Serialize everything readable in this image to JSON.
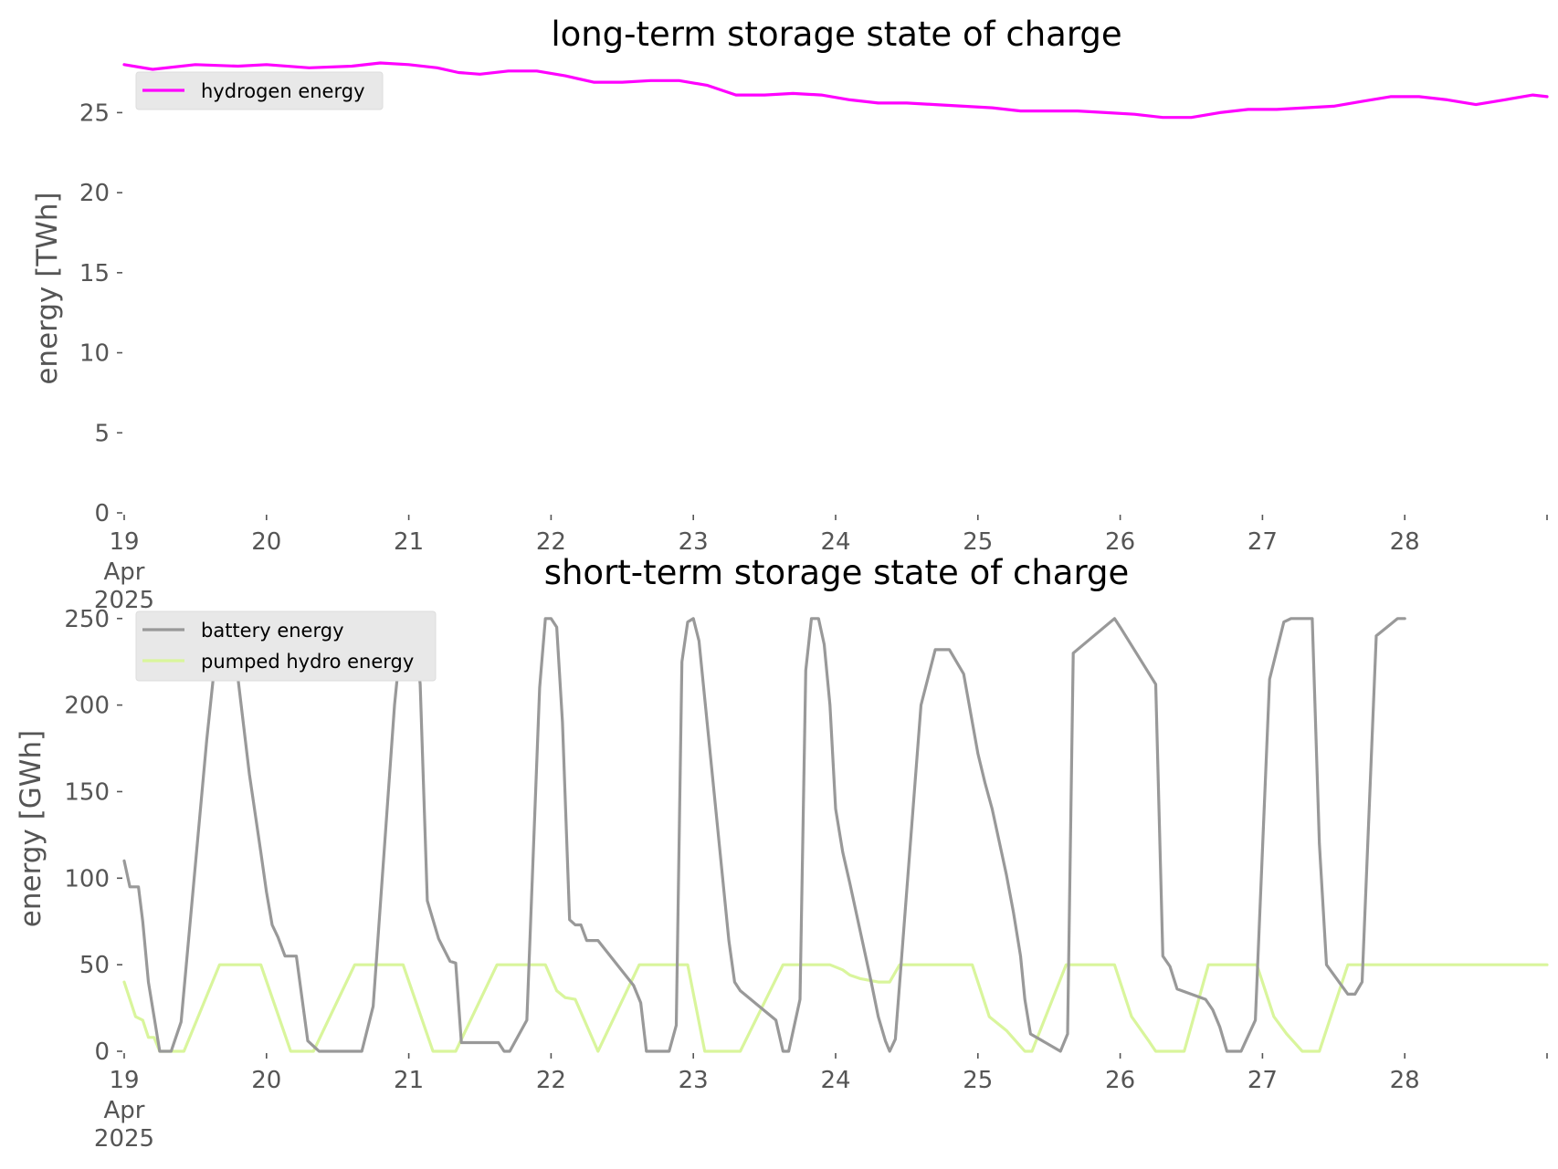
{
  "chart_data": [
    {
      "type": "line",
      "title": "long-term storage state of charge",
      "ylabel": "energy [TWh]",
      "xlabel": "",
      "ylim": [
        0,
        28.5
      ],
      "yticks": [
        0,
        5,
        10,
        15,
        20,
        25
      ],
      "xlim": [
        0,
        10
      ],
      "xticks": [
        0,
        1,
        2,
        3,
        4,
        5,
        6,
        7,
        8,
        9,
        10
      ],
      "xtick_labels": [
        "19",
        "20",
        "21",
        "22",
        "23",
        "24",
        "25",
        "26",
        "27",
        "28",
        ""
      ],
      "xtick_sublabels": [
        "Apr",
        "2025"
      ],
      "grid": false,
      "legend_position": "top-left",
      "series": [
        {
          "name": "hydrogen energy",
          "color": "#ff00ff",
          "x": [
            0,
            0.2,
            0.5,
            0.8,
            1.0,
            1.3,
            1.6,
            1.8,
            2.0,
            2.2,
            2.35,
            2.5,
            2.7,
            2.9,
            3.1,
            3.3,
            3.5,
            3.7,
            3.9,
            4.1,
            4.3,
            4.5,
            4.7,
            4.9,
            5.1,
            5.3,
            5.5,
            5.7,
            5.9,
            6.1,
            6.3,
            6.5,
            6.7,
            6.9,
            7.1,
            7.3,
            7.5,
            7.7,
            7.9,
            8.1,
            8.3,
            8.5,
            8.7,
            8.9,
            9.1,
            9.3,
            9.5,
            9.7,
            9.9,
            10.0
          ],
          "y": [
            28.0,
            27.7,
            28.0,
            27.9,
            28.0,
            27.8,
            27.9,
            28.1,
            28.0,
            27.8,
            27.5,
            27.4,
            27.6,
            27.6,
            27.3,
            26.9,
            26.9,
            27.0,
            27.0,
            26.7,
            26.1,
            26.1,
            26.2,
            26.1,
            25.8,
            25.6,
            25.6,
            25.5,
            25.4,
            25.3,
            25.1,
            25.1,
            25.1,
            25.0,
            24.9,
            24.7,
            24.7,
            25.0,
            25.2,
            25.2,
            25.3,
            25.4,
            25.7,
            26.0,
            26.0,
            25.8,
            25.5,
            25.8,
            26.1,
            26.0
          ]
        }
      ]
    },
    {
      "type": "line",
      "title": "short-term storage state of charge",
      "ylabel": "energy [GWh]",
      "xlabel": "",
      "ylim": [
        0,
        262
      ],
      "yticks": [
        0,
        50,
        100,
        150,
        200,
        250
      ],
      "xlim": [
        0,
        10
      ],
      "xticks": [
        0,
        1,
        2,
        3,
        4,
        5,
        6,
        7,
        8,
        9,
        10
      ],
      "xtick_labels": [
        "19",
        "20",
        "21",
        "22",
        "23",
        "24",
        "25",
        "26",
        "27",
        "28",
        ""
      ],
      "xtick_sublabels": [
        "Apr",
        "2025"
      ],
      "grid": false,
      "legend_position": "top-left",
      "series": [
        {
          "name": "battery energy",
          "color": "#999999",
          "x": [
            0,
            0.04,
            0.1,
            0.13,
            0.17,
            0.25,
            0.33,
            0.4,
            0.58,
            0.67,
            0.75,
            0.88,
            0.96,
            1.0,
            1.04,
            1.08,
            1.13,
            1.21,
            1.29,
            1.33,
            1.37,
            1.67,
            1.75,
            1.9,
            1.96,
            2.0,
            2.04,
            2.08,
            2.13,
            2.21,
            2.29,
            2.33,
            2.37,
            2.63,
            2.67,
            2.71,
            2.83,
            2.92,
            2.96,
            3.0,
            3.04,
            3.08,
            3.13,
            3.17,
            3.21,
            3.25,
            3.29,
            3.33,
            3.58,
            3.63,
            3.67,
            3.83,
            3.88,
            3.92,
            3.96,
            4.0,
            4.04,
            4.25,
            4.29,
            4.33,
            4.58,
            4.63,
            4.67,
            4.75,
            4.79,
            4.83,
            4.88,
            4.92,
            4.96,
            5.0,
            5.05,
            5.1,
            5.25,
            5.3,
            5.35,
            5.38,
            5.42,
            5.6,
            5.7,
            5.8,
            5.9,
            6.0,
            6.05,
            6.1,
            6.2,
            6.25,
            6.3,
            6.33,
            6.37,
            6.58,
            6.63,
            6.67,
            6.96,
            7.0,
            7.25,
            7.3,
            7.35,
            7.4,
            7.6,
            7.65,
            7.7,
            7.75,
            7.85,
            7.95,
            8.05,
            8.15,
            8.2,
            8.25,
            8.3,
            8.35,
            8.4,
            8.45,
            8.6,
            8.65,
            8.7,
            8.8,
            8.95,
            9.0
          ],
          "y": [
            110,
            95,
            95,
            75,
            40,
            0,
            0,
            17,
            180,
            250,
            250,
            160,
            115,
            92,
            73,
            66,
            55,
            55,
            6,
            3,
            0,
            0,
            26,
            200,
            250,
            250,
            245,
            212,
            87,
            65,
            52,
            51,
            5,
            5,
            0,
            0,
            18,
            210,
            250,
            250,
            245,
            190,
            76,
            73,
            73,
            64,
            64,
            64,
            38,
            28,
            0,
            0,
            15,
            225,
            248,
            250,
            237,
            64,
            40,
            35,
            18,
            0,
            0,
            30,
            220,
            250,
            250,
            235,
            200,
            140,
            115,
            97,
            40,
            20,
            6,
            0,
            7,
            200,
            232,
            232,
            218,
            172,
            155,
            140,
            102,
            80,
            55,
            30,
            10,
            0,
            10,
            230,
            250,
            245,
            212,
            55,
            49,
            36,
            30,
            24,
            14,
            0,
            0,
            18,
            215,
            248,
            250,
            250,
            250,
            250,
            120,
            50,
            33,
            33,
            40,
            240,
            250,
            250
          ]
        }
      ]
    }
  ],
  "legends": [
    {
      "entries": [
        {
          "label": "hydrogen energy",
          "color": "#ff00ff"
        }
      ]
    },
    {
      "entries": [
        {
          "label": "battery energy",
          "color": "#999999"
        },
        {
          "label": "pumped hydro energy",
          "color": "#d9f59c"
        }
      ]
    }
  ]
}
